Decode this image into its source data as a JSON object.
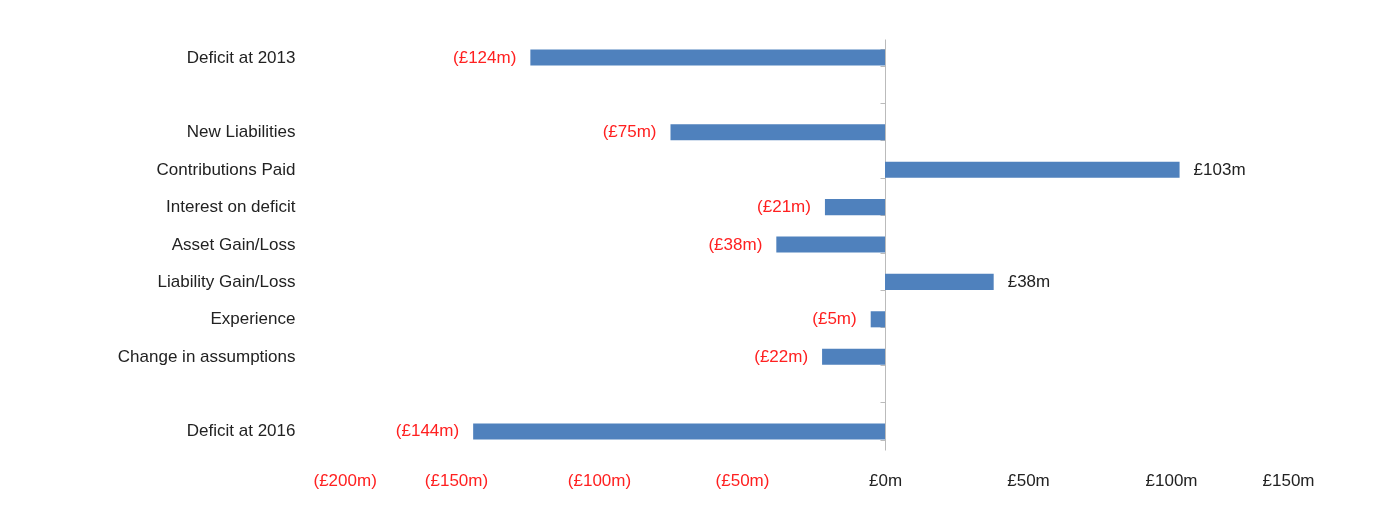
{
  "chart_data": {
    "type": "bar",
    "orientation": "horizontal",
    "categories": [
      "Deficit at 2013",
      null,
      "New Liabilities",
      "Contributions Paid",
      "Interest on deficit",
      "Asset Gain/Loss",
      "Liability Gain/Loss",
      "Experience",
      "Change in assumptions",
      null,
      "Deficit at 2016"
    ],
    "values": [
      -124,
      null,
      -75,
      103,
      -21,
      -38,
      38,
      -5,
      -22,
      null,
      -144
    ],
    "value_labels": [
      "(£124m)",
      null,
      "(£75m)",
      "£103m",
      "(£21m)",
      "(£38m)",
      "£38m",
      "(£5m)",
      "(£22m)",
      null,
      "(£144m)"
    ],
    "color": "#4f81bd",
    "xlim": [
      -200,
      150
    ],
    "xticks": [
      {
        "value": -200,
        "label": "(£200m)"
      },
      {
        "value": -150,
        "label": "(£150m)"
      },
      {
        "value": -100,
        "label": "(£100m)"
      },
      {
        "value": -50,
        "label": "(£50m)"
      },
      {
        "value": 0,
        "label": "£0m"
      },
      {
        "value": 50,
        "label": "£50m"
      },
      {
        "value": 100,
        "label": "£100m"
      },
      {
        "value": 150,
        "label": "£150m"
      }
    ]
  }
}
